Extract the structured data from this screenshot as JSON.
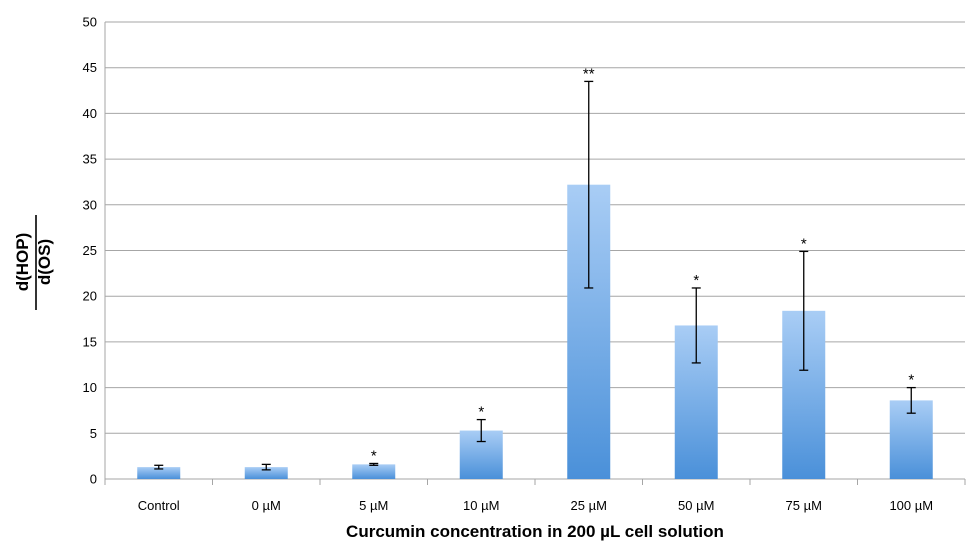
{
  "chart_data": {
    "type": "bar",
    "categories": [
      "Control",
      "0 µM",
      "5 µM",
      "10 µM",
      "25 µM",
      "50 µM",
      "75 µM",
      "100 µM"
    ],
    "series": [
      {
        "values": [
          1.3,
          1.3,
          1.6,
          5.3,
          32.2,
          16.8,
          18.4,
          8.6
        ],
        "error_low": [
          1.1,
          1.0,
          1.5,
          4.1,
          20.9,
          12.7,
          11.9,
          7.2
        ],
        "error_high": [
          1.5,
          1.6,
          1.7,
          6.5,
          43.5,
          20.9,
          24.9,
          10.0
        ],
        "significance": [
          "",
          "",
          "*",
          "*",
          "**",
          "*",
          "*",
          "*"
        ]
      }
    ],
    "xlabel": "Curcumin concentration in 200 µL cell solution",
    "ylabel": {
      "numerator": "d(HOP)",
      "denominator": "d(OS)"
    },
    "ylim": [
      0,
      50
    ],
    "yticks": [
      0,
      5,
      10,
      15,
      20,
      25,
      30,
      35,
      40,
      45,
      50
    ],
    "grid": true,
    "legend": "none",
    "colors": {
      "bar_top": "#a9cdf5",
      "bar_bottom": "#4a90d9",
      "grid": "#a6a6a6",
      "error_bar": "#000000"
    }
  }
}
